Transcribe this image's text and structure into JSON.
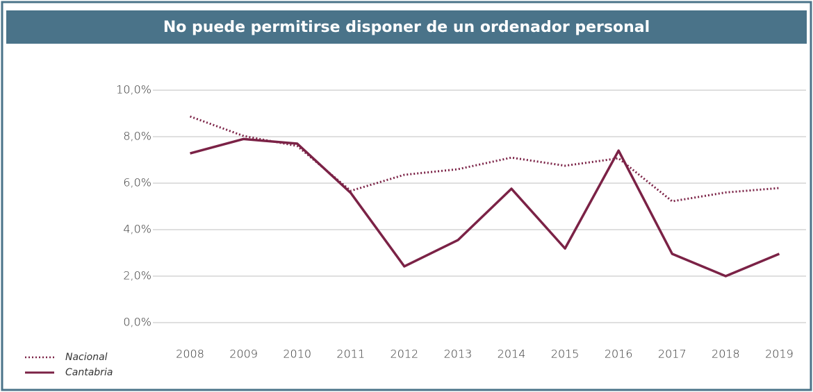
{
  "chart_data": {
    "type": "line",
    "title": "No puede permitirse disponer de un ordenador personal",
    "categories": [
      "2008",
      "2009",
      "2010",
      "2011",
      "2012",
      "2013",
      "2014",
      "2015",
      "2016",
      "2017",
      "2018",
      "2019"
    ],
    "series": [
      {
        "name": "Nacional",
        "color": "#7b2246",
        "line_style": "dotted",
        "values": [
          8.87,
          8.03,
          7.6,
          5.67,
          6.36,
          6.6,
          7.1,
          6.75,
          7.07,
          5.22,
          5.6,
          5.79
        ]
      },
      {
        "name": "Cantabria",
        "color": "#7b2246",
        "line_style": "solid",
        "values": [
          7.28,
          7.9,
          7.7,
          5.58,
          2.42,
          3.55,
          5.76,
          3.19,
          7.4,
          2.96,
          2.0,
          2.96
        ]
      }
    ],
    "ylim": [
      0,
      10
    ],
    "yticks": [
      {
        "value": 0,
        "label": "0,0%"
      },
      {
        "value": 2,
        "label": "2,0%"
      },
      {
        "value": 4,
        "label": "4,0%"
      },
      {
        "value": 6,
        "label": "6,0%"
      },
      {
        "value": 8,
        "label": "8,0%"
      },
      {
        "value": 10,
        "label": "10,0%"
      }
    ],
    "grid": true,
    "legend": "bottom-left"
  }
}
